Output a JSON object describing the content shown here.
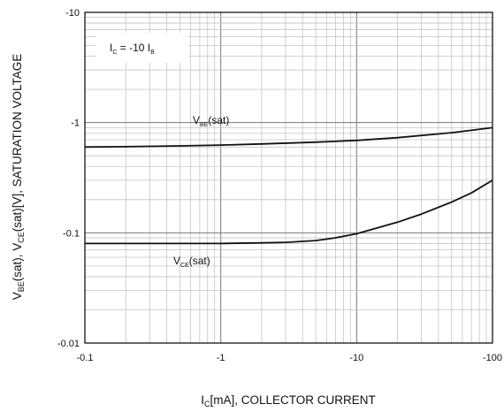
{
  "chart_data": {
    "type": "line",
    "x_scale": "log",
    "y_scale": "log",
    "xlim": [
      -0.1,
      -100
    ],
    "ylim": [
      -0.01,
      -10
    ],
    "grid": true,
    "x_ticks": [
      "-0.1",
      "-1",
      "-10",
      "-100"
    ],
    "y_ticks": [
      "-0.01",
      "-0.1",
      "-1",
      "-10"
    ],
    "xlabel": {
      "main": "I",
      "sub": "C",
      "rest": "[mA], COLLECTOR CURRENT"
    },
    "ylabel": {
      "p1": "V",
      "s1": "BE",
      "p2": "(sat), V",
      "s2": "CE",
      "p3": "(sat)[V], SATURATION VOLTAGE"
    },
    "annotation": {
      "p1": "I",
      "s1": "C",
      "p2": " = -10 I",
      "s2": "B"
    },
    "series": [
      {
        "name": {
          "main": "V",
          "sub": "BE",
          "rest": "(sat)"
        },
        "x": [
          -0.1,
          -0.2,
          -0.5,
          -1,
          -2,
          -5,
          -10,
          -20,
          -50,
          -100
        ],
        "y": [
          -0.6,
          -0.605,
          -0.615,
          -0.625,
          -0.64,
          -0.665,
          -0.69,
          -0.73,
          -0.81,
          -0.9
        ]
      },
      {
        "name": {
          "main": "V",
          "sub": "CE",
          "rest": "(sat)"
        },
        "x": [
          -0.1,
          -0.3,
          -1,
          -2,
          -3,
          -5,
          -7,
          -10,
          -20,
          -30,
          -50,
          -70,
          -100
        ],
        "y": [
          -0.08,
          -0.08,
          -0.08,
          -0.081,
          -0.082,
          -0.085,
          -0.09,
          -0.098,
          -0.125,
          -0.148,
          -0.19,
          -0.23,
          -0.3
        ]
      }
    ]
  }
}
